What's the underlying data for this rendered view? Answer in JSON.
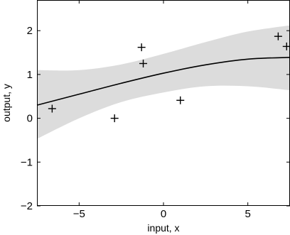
{
  "chart_data": {
    "type": "line",
    "xlabel": "input, x",
    "ylabel": "output, y",
    "xlim": [
      -7.5,
      7.5
    ],
    "ylim": [
      -2,
      2.7
    ],
    "xticks": [
      -5,
      0,
      5
    ],
    "xtick_labels": [
      "−5",
      "0",
      "5"
    ],
    "yticks": [
      -2,
      -1,
      0,
      1,
      2
    ],
    "ytick_labels": [
      "−2",
      "−1",
      "0",
      "1",
      "2"
    ],
    "grid": false,
    "colors": {
      "mean": "#000000",
      "band": "#dcdcdc",
      "points": "#000000"
    },
    "points": {
      "marker": "plus",
      "x": [
        -6.6,
        -2.9,
        -1.3,
        -1.2,
        1.0,
        6.8,
        7.3
      ],
      "y": [
        0.22,
        0.0,
        1.62,
        1.25,
        0.41,
        1.87,
        1.64
      ]
    },
    "mean": {
      "x": [
        -7.5,
        -5,
        -2.5,
        0,
        2.5,
        5,
        7.5
      ],
      "y": [
        0.3,
        0.55,
        0.8,
        1.03,
        1.22,
        1.35,
        1.39
      ]
    },
    "band": {
      "x": [
        -7.5,
        -5,
        -2.5,
        0,
        2.5,
        5,
        7.5
      ],
      "upper": [
        1.1,
        1.1,
        1.23,
        1.47,
        1.74,
        1.98,
        2.12
      ],
      "lower": [
        -0.47,
        0.0,
        0.37,
        0.59,
        0.73,
        0.73,
        0.64
      ]
    }
  }
}
